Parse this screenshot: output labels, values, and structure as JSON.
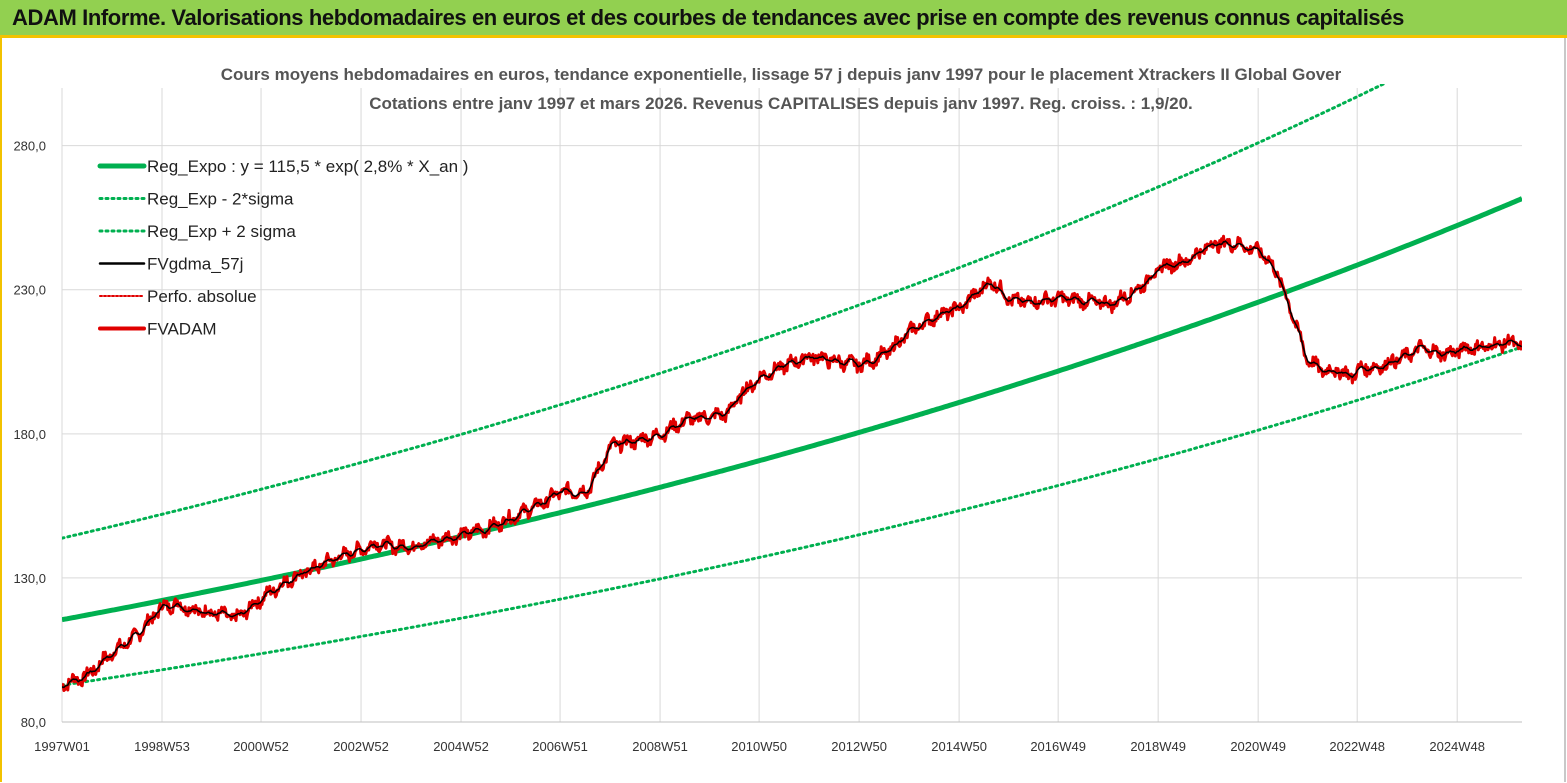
{
  "header": {
    "title": "ADAM Informe. Valorisations hebdomadaires en euros et des courbes de tendances avec prise en compte des revenus connus capitalisés"
  },
  "chart_data": {
    "type": "line",
    "title": "Cours moyens hebdomadaires en euros, tendance exponentielle, lissage 57 j depuis janv 1997 pour le placement Xtrackers II Global Gover",
    "subtitle": "Cotations entre janv 1997 et mars 2026. Revenus CAPITALISES depuis janv 1997. Reg. croiss. : 1,9/20.",
    "xlabel": "",
    "ylabel": "",
    "ylim": [
      80,
      300
    ],
    "yticks": [
      "80,0",
      "130,0",
      "180,0",
      "230,0",
      "280,0"
    ],
    "xticks": [
      "1997W01",
      "1998W53",
      "2000W52",
      "2002W52",
      "2004W52",
      "2006W51",
      "2008W51",
      "2010W50",
      "2012W50",
      "2014W50",
      "2016W49",
      "2018W49",
      "2020W49",
      "2022W48",
      "2024W48"
    ],
    "xrange": [
      1997.0,
      2026.2
    ],
    "grid": true,
    "legend_position": "top-left",
    "regression": {
      "a": 115.5,
      "growth": 0.028,
      "sigma_factor": 1.245
    },
    "series": [
      {
        "name": "Reg_Expo : y = 115,5 * exp( 2,8% *  X_an )",
        "color": "#00b050",
        "style": "thick"
      },
      {
        "name": "Reg_Exp - 2*sigma",
        "color": "#00b050",
        "style": "dotted"
      },
      {
        "name": "Reg_Exp + 2 sigma",
        "color": "#00b050",
        "style": "dotted"
      },
      {
        "name": "FVgdma_57j",
        "color": "#000000",
        "style": "solid"
      },
      {
        "name": "Perfo. absolue",
        "color": "#e00000",
        "style": "dotted"
      },
      {
        "name": "FVADAM",
        "color": "#e00000",
        "style": "solid-thick"
      }
    ],
    "fvadam": {
      "x": [
        1997.0,
        1997.5,
        1998.0,
        1998.5,
        1999.0,
        1999.3,
        1999.6,
        2000.0,
        2000.5,
        2001.0,
        2001.5,
        2002.0,
        2002.5,
        2003.0,
        2003.3,
        2003.6,
        2004.0,
        2004.5,
        2005.0,
        2005.5,
        2006.0,
        2006.5,
        2007.0,
        2007.5,
        2008.0,
        2008.3,
        2008.6,
        2009.0,
        2009.5,
        2010.0,
        2010.3,
        2010.6,
        2011.0,
        2011.5,
        2012.0,
        2012.5,
        2013.0,
        2013.5,
        2014.0,
        2014.5,
        2015.0,
        2015.3,
        2015.6,
        2016.0,
        2016.5,
        2017.0,
        2017.5,
        2018.0,
        2018.5,
        2019.0,
        2019.5,
        2020.0,
        2020.5,
        2021.0,
        2021.3,
        2021.6,
        2021.9,
        2022.2,
        2022.5,
        2022.8,
        2023.0,
        2023.3,
        2023.6,
        2023.9,
        2024.2,
        2024.5,
        2024.8,
        2025.1,
        2025.4,
        2025.7,
        2026.0,
        2026.2
      ],
      "y": [
        93,
        96,
        104,
        110,
        120,
        121,
        119,
        118,
        116,
        123,
        129,
        133,
        137,
        140,
        142,
        141,
        141,
        143,
        145,
        147,
        151,
        155,
        160,
        160,
        176,
        177,
        178,
        180,
        185,
        186,
        187,
        194,
        200,
        204,
        207,
        205,
        204,
        208,
        216,
        221,
        224,
        229,
        233,
        226,
        226,
        227,
        226,
        225,
        230,
        238,
        240,
        246,
        246,
        243,
        236,
        222,
        206,
        202,
        202,
        200,
        203,
        203,
        205,
        207,
        210,
        208,
        208,
        210,
        210,
        211,
        212,
        210
      ]
    }
  }
}
